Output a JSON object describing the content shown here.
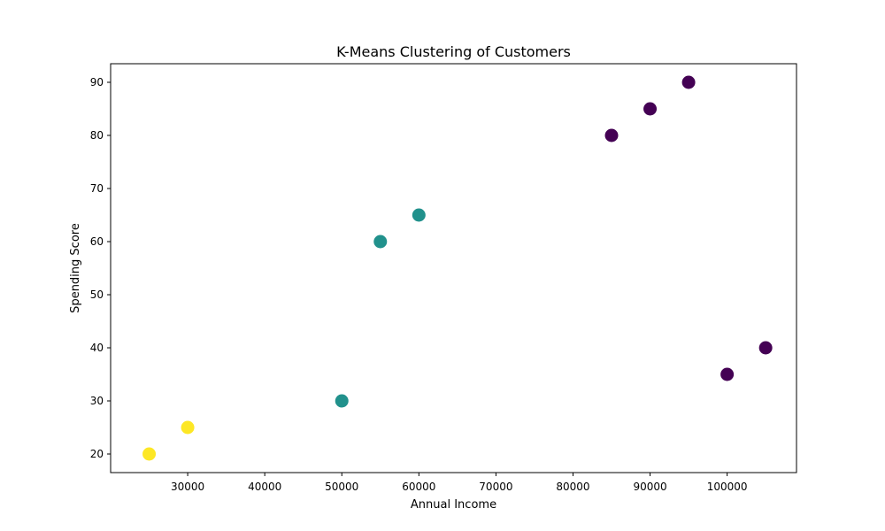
{
  "chart_data": {
    "type": "scatter",
    "title": "K-Means Clustering of Customers",
    "xlabel": "Annual Income",
    "ylabel": "Spending Score",
    "xlim": [
      20000,
      109000
    ],
    "ylim": [
      16.5,
      93.5
    ],
    "xticks": [
      30000,
      40000,
      50000,
      60000,
      70000,
      80000,
      90000,
      100000
    ],
    "yticks": [
      20,
      30,
      40,
      50,
      60,
      70,
      80,
      90
    ],
    "grid": false,
    "legend": null,
    "cluster_colors": {
      "0": "#440154",
      "1": "#21918c",
      "2": "#fde725"
    },
    "points": [
      {
        "x": 25000,
        "y": 20,
        "cluster": 2
      },
      {
        "x": 30000,
        "y": 25,
        "cluster": 2
      },
      {
        "x": 50000,
        "y": 30,
        "cluster": 1
      },
      {
        "x": 55000,
        "y": 60,
        "cluster": 1
      },
      {
        "x": 60000,
        "y": 65,
        "cluster": 1
      },
      {
        "x": 85000,
        "y": 80,
        "cluster": 0
      },
      {
        "x": 90000,
        "y": 85,
        "cluster": 0
      },
      {
        "x": 95000,
        "y": 90,
        "cluster": 0
      },
      {
        "x": 100000,
        "y": 35,
        "cluster": 0
      },
      {
        "x": 105000,
        "y": 40,
        "cluster": 0
      }
    ]
  }
}
